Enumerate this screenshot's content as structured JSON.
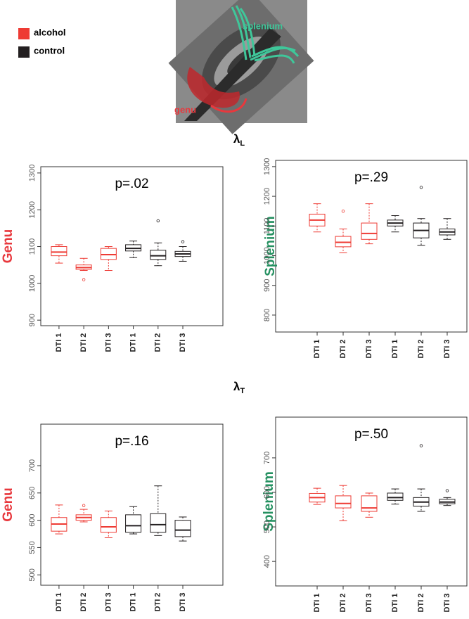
{
  "legend": [
    {
      "name": "alcohol",
      "color": "#ee3b34"
    },
    {
      "name": "control",
      "color": "#231f20"
    }
  ],
  "image": {
    "labels": [
      {
        "text": "splenium",
        "color": "#3fc79a"
      },
      {
        "text": "genu",
        "color": "#e8383d"
      }
    ]
  },
  "sections": [
    {
      "symbol": "λ",
      "subscript": "L"
    },
    {
      "symbol": "λ",
      "subscript": "T"
    }
  ],
  "chart_data": [
    {
      "type": "box",
      "title": "p=.02",
      "ylabel": "Genu",
      "ylabel_color": "#e8383d",
      "categories": [
        "DTI 1",
        "DTI 2",
        "DTI 3",
        "DTI 1",
        "DTI 2",
        "DTI 3"
      ],
      "ylim": [
        885,
        1317
      ],
      "yticks": [
        900,
        1000,
        1100,
        1200,
        1300
      ],
      "series": [
        {
          "color": "#ee3b34",
          "boxes": [
            {
              "min": 1055,
              "q1": 1075,
              "median": 1085,
              "q3": 1100,
              "max": 1105,
              "outliers": []
            },
            {
              "min": 1035,
              "q1": 1038,
              "median": 1043,
              "q3": 1050,
              "max": 1068,
              "outliers": [
                1010
              ]
            },
            {
              "min": 1035,
              "q1": 1065,
              "median": 1078,
              "q3": 1095,
              "max": 1100,
              "outliers": []
            }
          ]
        },
        {
          "color": "#231f20",
          "boxes": [
            {
              "min": 1070,
              "q1": 1088,
              "median": 1095,
              "q3": 1105,
              "max": 1115,
              "outliers": []
            },
            {
              "min": 1048,
              "q1": 1065,
              "median": 1075,
              "q3": 1090,
              "max": 1110,
              "outliers": [
                1170
              ]
            },
            {
              "min": 1060,
              "q1": 1073,
              "median": 1080,
              "q3": 1087,
              "max": 1100,
              "outliers": [
                1113
              ]
            }
          ]
        }
      ]
    },
    {
      "type": "box",
      "title": "p=.29",
      "ylabel": "Splenium",
      "ylabel_color": "#249060",
      "categories": [
        "DTI 1",
        "DTI 2",
        "DTI 3",
        "DTI 1",
        "DTI 2",
        "DTI 3"
      ],
      "ylim": [
        743,
        1321
      ],
      "yticks": [
        800,
        900,
        1000,
        1100,
        1200,
        1300
      ],
      "series": [
        {
          "color": "#ee3b34",
          "boxes": [
            {
              "min": 1080,
              "q1": 1100,
              "median": 1120,
              "q3": 1140,
              "max": 1175,
              "outliers": []
            },
            {
              "min": 1010,
              "q1": 1030,
              "median": 1045,
              "q3": 1065,
              "max": 1090,
              "outliers": [
                1150
              ]
            },
            {
              "min": 1040,
              "q1": 1055,
              "median": 1075,
              "q3": 1110,
              "max": 1175,
              "outliers": []
            }
          ]
        },
        {
          "color": "#231f20",
          "boxes": [
            {
              "min": 1080,
              "q1": 1100,
              "median": 1110,
              "q3": 1120,
              "max": 1135,
              "outliers": []
            },
            {
              "min": 1035,
              "q1": 1060,
              "median": 1085,
              "q3": 1110,
              "max": 1125,
              "outliers": [
                1230
              ]
            },
            {
              "min": 1055,
              "q1": 1070,
              "median": 1080,
              "q3": 1090,
              "max": 1125,
              "outliers": []
            }
          ]
        }
      ]
    },
    {
      "type": "box",
      "title": "p=.16",
      "ylabel": "Genu",
      "ylabel_color": "#e8383d",
      "categories": [
        "DTI 1",
        "DTI 2",
        "DTI 3",
        "DTI 1",
        "DTI 2",
        "DTI 3"
      ],
      "ylim": [
        481,
        776
      ],
      "yticks": [
        500,
        550,
        600,
        650,
        700
      ],
      "series": [
        {
          "color": "#ee3b34",
          "boxes": [
            {
              "min": 575,
              "q1": 580,
              "median": 593,
              "q3": 605,
              "max": 628,
              "outliers": []
            },
            {
              "min": 597,
              "q1": 600,
              "median": 605,
              "q3": 610,
              "max": 620,
              "outliers": [
                627
              ]
            },
            {
              "min": 568,
              "q1": 578,
              "median": 588,
              "q3": 605,
              "max": 617,
              "outliers": []
            }
          ]
        },
        {
          "color": "#231f20",
          "boxes": [
            {
              "min": 575,
              "q1": 578,
              "median": 590,
              "q3": 610,
              "max": 625,
              "outliers": []
            },
            {
              "min": 572,
              "q1": 578,
              "median": 592,
              "q3": 612,
              "max": 663,
              "outliers": []
            },
            {
              "min": 562,
              "q1": 570,
              "median": 582,
              "q3": 600,
              "max": 606,
              "outliers": []
            }
          ]
        }
      ]
    },
    {
      "type": "box",
      "title": "p=.50",
      "ylabel": "Splenium",
      "ylabel_color": "#249060",
      "categories": [
        "DTI 1",
        "DTI 2",
        "DTI 3",
        "DTI 1",
        "DTI 2",
        "DTI 3"
      ],
      "ylim": [
        329,
        818
      ],
      "yticks": [
        400,
        500,
        600,
        700
      ],
      "series": [
        {
          "color": "#ee3b34",
          "boxes": [
            {
              "min": 565,
              "q1": 572,
              "median": 585,
              "q3": 597,
              "max": 612,
              "outliers": []
            },
            {
              "min": 518,
              "q1": 555,
              "median": 568,
              "q3": 590,
              "max": 620,
              "outliers": []
            },
            {
              "min": 528,
              "q1": 545,
              "median": 555,
              "q3": 590,
              "max": 598,
              "outliers": []
            }
          ]
        },
        {
          "color": "#231f20",
          "boxes": [
            {
              "min": 566,
              "q1": 577,
              "median": 585,
              "q3": 598,
              "max": 610,
              "outliers": []
            },
            {
              "min": 545,
              "q1": 560,
              "median": 572,
              "q3": 585,
              "max": 610,
              "outliers": [
                735
              ]
            },
            {
              "min": 562,
              "q1": 567,
              "median": 572,
              "q3": 580,
              "max": 585,
              "outliers": [
                605
              ]
            }
          ]
        }
      ]
    }
  ]
}
